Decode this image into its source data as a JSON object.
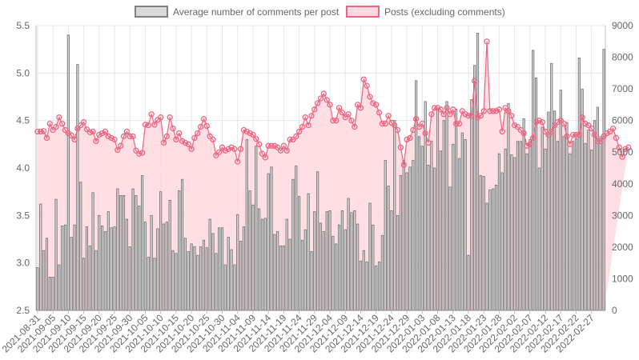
{
  "chart_data": {
    "type": "bar",
    "legend": {
      "placement": "top-center",
      "items": [
        {
          "label": "Average number of comments per post",
          "fill": "#d9d9d9",
          "stroke": "#808080"
        },
        {
          "label": "Posts (excluding comments)",
          "fill": "#ffd9df",
          "stroke": "#f0627f"
        }
      ]
    },
    "x": {
      "start_date": "2021-08-31",
      "tick_labels": [
        "2021-08-31",
        "2021-09-05",
        "2021-09-10",
        "2021-09-15",
        "2021-09-20",
        "2021-09-25",
        "2021-09-30",
        "2021-10-05",
        "2021-10-10",
        "2021-10-15",
        "2021-10-20",
        "2021-10-25",
        "2021-10-30",
        "2021-11-04",
        "2021-11-09",
        "2021-11-14",
        "2021-11-19",
        "2021-11-24",
        "2021-11-29",
        "2021-12-04",
        "2021-12-09",
        "2021-12-14",
        "2021-12-19",
        "2021-12-24",
        "2021-12-29",
        "2022-01-03",
        "2022-01-08",
        "2022-01-13",
        "2022-01-18",
        "2022-01-23",
        "2022-01-28",
        "2022-02-02",
        "2022-02-07",
        "2022-02-12",
        "2022-02-17",
        "2022-02-22",
        "2022-02-27"
      ]
    },
    "y_left": {
      "min": 2.5,
      "max": 5.5,
      "ticks": [
        "2.5",
        "3.0",
        "3.5",
        "4.0",
        "4.5",
        "5.0",
        "5.5"
      ]
    },
    "y_right": {
      "min": 0,
      "max": 9000,
      "ticks": [
        "0",
        "1000",
        "2000",
        "3000",
        "4000",
        "5000",
        "6000",
        "7000",
        "8000",
        "9000"
      ]
    },
    "grid": true,
    "series": [
      {
        "name": "Average number of comments per post",
        "type": "bar",
        "axis": "left",
        "color": "#808080",
        "values": [
          2.95,
          3.62,
          3.13,
          3.26,
          2.85,
          2.85,
          3.67,
          2.98,
          3.39,
          3.4,
          5.4,
          3.27,
          3.4,
          5.09,
          3.85,
          3.05,
          3.38,
          3.18,
          3.74,
          3.13,
          3.5,
          3.39,
          3.33,
          3.54,
          3.37,
          3.38,
          3.78,
          3.71,
          3.71,
          3.46,
          3.17,
          3.78,
          3.71,
          3.6,
          3.92,
          3.43,
          3.06,
          3.5,
          3.05,
          3.36,
          3.75,
          3.41,
          3.43,
          3.66,
          3.13,
          3.1,
          3.76,
          3.88,
          3.26,
          3.12,
          3.2,
          3.17,
          3.08,
          3.17,
          3.24,
          3.16,
          3.46,
          3.31,
          3.1,
          3.37,
          3.37,
          2.98,
          3.27,
          3.14,
          2.98,
          3.51,
          3.23,
          3.38,
          4.3,
          3.76,
          3.61,
          4.23,
          3.57,
          3.46,
          3.47,
          3.94,
          4.01,
          3.3,
          3.33,
          3.18,
          3.18,
          3.46,
          3.25,
          3.88,
          4.02,
          3.7,
          3.24,
          3.35,
          3.73,
          3.12,
          3.54,
          3.96,
          3.42,
          3.33,
          3.54,
          3.55,
          3.28,
          3.2,
          3.4,
          3.55,
          3.35,
          3.68,
          3.53,
          3.55,
          3.41,
          3.02,
          3.13,
          3.01,
          3.63,
          3.4,
          2.97,
          3.01,
          3.29,
          4.08,
          3.81,
          3.55,
          4.5,
          3.5,
          3.92,
          4.08,
          3.95,
          4.01,
          4.08,
          4.92,
          4.33,
          4.23,
          4.7,
          4.03,
          4.28,
          4.0,
          4.62,
          4.18,
          4.5,
          4.7,
          3.8,
          4.25,
          4.62,
          4.1,
          4.37,
          4.3,
          3.08,
          4.72,
          5.08,
          5.42,
          3.92,
          3.91,
          3.63,
          3.77,
          3.78,
          3.82,
          4.15,
          3.95,
          4.2,
          4.68,
          4.14,
          4.11,
          4.28,
          4.28,
          4.52,
          4.15,
          4.3,
          5.24,
          4.95,
          4.0,
          4.43,
          4.2,
          4.59,
          5.1,
          4.6,
          4.28,
          4.82,
          4.33,
          4.48,
          4.15,
          4.28,
          4.31,
          5.16,
          4.83,
          4.26,
          4.4,
          4.19,
          4.5,
          4.64,
          4.33,
          5.25
        ]
      },
      {
        "name": "Posts (excluding comments)",
        "type": "area",
        "axis": "right",
        "color": "#f0627f",
        "values": [
          5650,
          5650,
          5670,
          5450,
          5900,
          5700,
          5800,
          6100,
          5900,
          5700,
          5600,
          5530,
          5400,
          5750,
          5850,
          5950,
          5720,
          5630,
          5650,
          5350,
          5550,
          5600,
          5650,
          5500,
          5450,
          5400,
          5070,
          5200,
          5500,
          5650,
          5500,
          5500,
          5050,
          4950,
          4980,
          5870,
          5850,
          6200,
          5870,
          6020,
          6100,
          5300,
          5500,
          6100,
          5750,
          5400,
          5600,
          5350,
          5300,
          5250,
          5100,
          5450,
          5600,
          5800,
          6050,
          5830,
          5500,
          5400,
          4900,
          5000,
          5150,
          5050,
          5100,
          5150,
          5100,
          4700,
          5100,
          5700,
          5650,
          5600,
          5550,
          5420,
          5250,
          4950,
          4830,
          5200,
          5200,
          5200,
          5150,
          5050,
          5200,
          5050,
          5400,
          5400,
          5500,
          5650,
          5800,
          6100,
          5850,
          6150,
          6350,
          6550,
          6700,
          6850,
          6650,
          6500,
          6000,
          6000,
          6400,
          6250,
          6100,
          6200,
          6000,
          5800,
          6500,
          6400,
          7300,
          7100,
          6750,
          6550,
          6500,
          6250,
          5900,
          5900,
          6150,
          5930,
          5850,
          5700,
          5150,
          4600,
          5400,
          5450,
          5700,
          6050,
          5800,
          5900,
          5600,
          5300,
          6200,
          6400,
          6400,
          6350,
          6200,
          6400,
          6200,
          6350,
          5900,
          5900,
          6300,
          6200,
          6150,
          6150,
          7250,
          6100,
          6150,
          6300,
          8500,
          6300,
          6300,
          6300,
          6350,
          5650,
          6400,
          6300,
          6150,
          5850,
          5800,
          5700,
          5600,
          5200,
          5250,
          5450,
          5950,
          6000,
          5950,
          5650,
          5550,
          5650,
          5850,
          5950,
          6000,
          5900,
          5500,
          5250,
          5550,
          5550,
          5550,
          6100,
          5900,
          5850,
          5750,
          5550,
          5350,
          5350,
          5500,
          5600,
          5650,
          5750,
          5450,
          5150,
          4850,
          5100,
          5150
        ]
      }
    ]
  }
}
